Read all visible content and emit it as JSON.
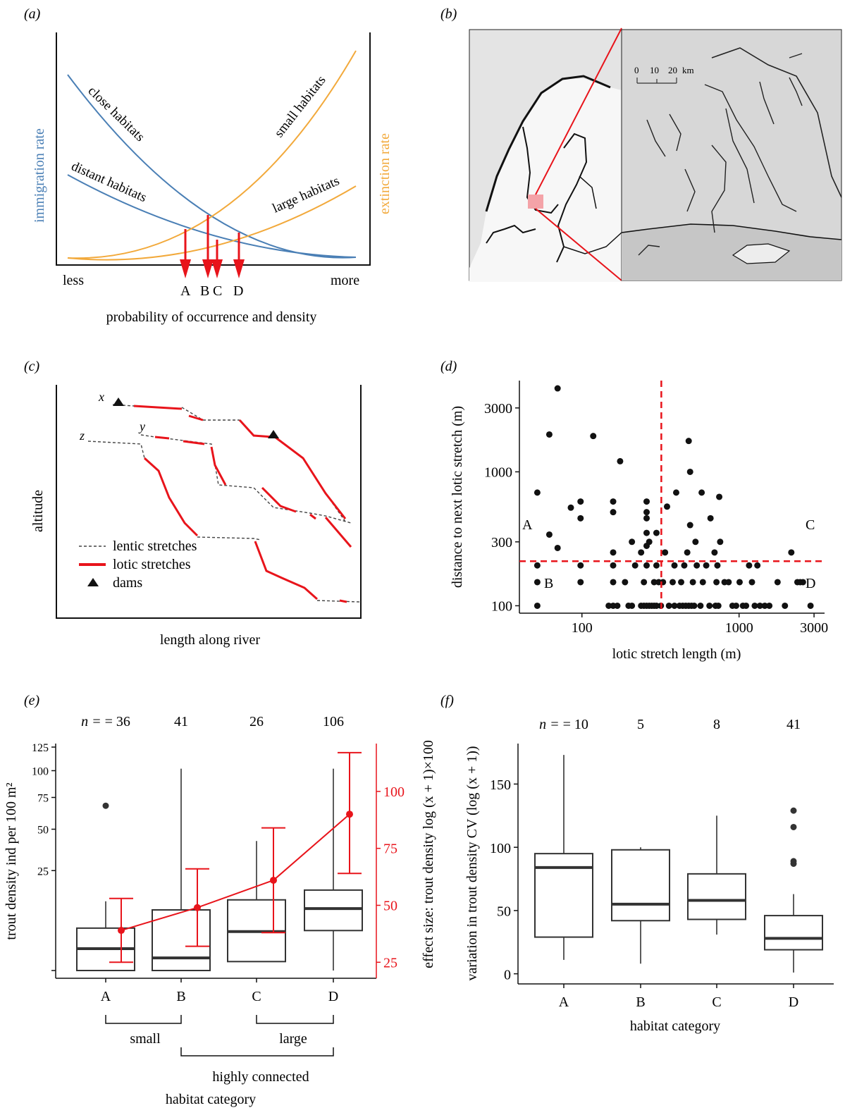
{
  "panels": {
    "a": {
      "tag": "(a)"
    },
    "b": {
      "tag": "(b)"
    },
    "c": {
      "tag": "(c)"
    },
    "d": {
      "tag": "(d)"
    },
    "e": {
      "tag": "(e)"
    },
    "f": {
      "tag": "(f)"
    }
  },
  "colors": {
    "blue": "#4a7fb5",
    "orange": "#f2a93b",
    "red": "#e8141b",
    "black": "#111111",
    "box": "#333333"
  },
  "chart_data": [
    {
      "id": "a",
      "type": "line",
      "ylabel_left": "immigration rate",
      "ylabel_right": "extinction rate",
      "xlabel": "probability of occurrence and density",
      "x_end_labels": [
        "less",
        "more"
      ],
      "curve_labels": [
        "close habitats",
        "distant habitats",
        "small habitats",
        "large habitats"
      ],
      "arrow_labels": [
        "A",
        "B",
        "C",
        "D"
      ]
    },
    {
      "id": "b",
      "type": "map",
      "scale_ticks": [
        "0",
        "10",
        "20"
      ],
      "scale_unit": "km"
    },
    {
      "id": "c",
      "type": "line",
      "ylabel": "altitude",
      "xlabel": "length along river",
      "point_labels": [
        "x",
        "y",
        "z"
      ],
      "legend": [
        "lentic stretches",
        "lotic stretches",
        "dams"
      ]
    },
    {
      "id": "d",
      "type": "scatter",
      "xlabel": "lotic stretch length (m)",
      "ylabel": "distance to next lotic stretch (m)",
      "x_scale": "log",
      "y_scale": "log",
      "xlim": [
        40,
        3500
      ],
      "ylim": [
        88,
        4800
      ],
      "x_ticks": [
        100,
        1000,
        3000
      ],
      "x_ticklabels": [
        "100",
        "1000",
        "3000"
      ],
      "y_ticks": [
        100,
        300,
        1000,
        3000
      ],
      "y_ticklabels": [
        "100",
        "300",
        "1000",
        "3000"
      ],
      "threshold_x": 320,
      "threshold_y": 215,
      "quadrant_labels": [
        "A",
        "B",
        "C",
        "D"
      ],
      "points": [
        [
          52,
          100
        ],
        [
          52,
          150
        ],
        [
          52,
          200
        ],
        [
          52,
          700
        ],
        [
          62,
          340
        ],
        [
          62,
          1900
        ],
        [
          70,
          4200
        ],
        [
          70,
          270
        ],
        [
          85,
          540
        ],
        [
          98,
          150
        ],
        [
          98,
          200
        ],
        [
          98,
          450
        ],
        [
          98,
          600
        ],
        [
          118,
          1850
        ],
        [
          148,
          100
        ],
        [
          158,
          100
        ],
        [
          158,
          150
        ],
        [
          158,
          200
        ],
        [
          158,
          250
        ],
        [
          158,
          500
        ],
        [
          158,
          600
        ],
        [
          168,
          100
        ],
        [
          175,
          1200
        ],
        [
          188,
          150
        ],
        [
          198,
          100
        ],
        [
          208,
          100
        ],
        [
          208,
          300
        ],
        [
          218,
          200
        ],
        [
          238,
          100
        ],
        [
          238,
          250
        ],
        [
          248,
          100
        ],
        [
          248,
          150
        ],
        [
          258,
          100
        ],
        [
          258,
          200
        ],
        [
          258,
          280
        ],
        [
          258,
          350
        ],
        [
          258,
          450
        ],
        [
          258,
          500
        ],
        [
          258,
          600
        ],
        [
          268,
          100
        ],
        [
          268,
          300
        ],
        [
          278,
          100
        ],
        [
          288,
          100
        ],
        [
          288,
          150
        ],
        [
          298,
          100
        ],
        [
          298,
          200
        ],
        [
          298,
          350
        ],
        [
          308,
          150
        ],
        [
          318,
          100
        ],
        [
          328,
          150
        ],
        [
          338,
          250
        ],
        [
          348,
          550
        ],
        [
          358,
          100
        ],
        [
          378,
          150
        ],
        [
          388,
          100
        ],
        [
          388,
          200
        ],
        [
          398,
          700
        ],
        [
          418,
          100
        ],
        [
          428,
          150
        ],
        [
          438,
          100
        ],
        [
          448,
          200
        ],
        [
          458,
          100
        ],
        [
          468,
          250
        ],
        [
          478,
          100
        ],
        [
          478,
          1700
        ],
        [
          488,
          1000
        ],
        [
          488,
          400
        ],
        [
          498,
          100
        ],
        [
          508,
          150
        ],
        [
          518,
          100
        ],
        [
          528,
          300
        ],
        [
          538,
          200
        ],
        [
          568,
          100
        ],
        [
          578,
          700
        ],
        [
          588,
          150
        ],
        [
          618,
          200
        ],
        [
          648,
          100
        ],
        [
          658,
          450
        ],
        [
          698,
          250
        ],
        [
          708,
          100
        ],
        [
          718,
          150
        ],
        [
          728,
          200
        ],
        [
          738,
          100
        ],
        [
          748,
          650
        ],
        [
          758,
          300
        ],
        [
          808,
          150
        ],
        [
          858,
          150
        ],
        [
          908,
          100
        ],
        [
          958,
          100
        ],
        [
          1008,
          150
        ],
        [
          1058,
          100
        ],
        [
          1108,
          100
        ],
        [
          1158,
          200
        ],
        [
          1208,
          150
        ],
        [
          1258,
          100
        ],
        [
          1308,
          200
        ],
        [
          1358,
          100
        ],
        [
          1458,
          100
        ],
        [
          1558,
          100
        ],
        [
          1758,
          150
        ],
        [
          1958,
          100
        ],
        [
          2150,
          250
        ],
        [
          2350,
          150
        ],
        [
          2450,
          150
        ],
        [
          2550,
          150
        ],
        [
          2850,
          100
        ]
      ]
    },
    {
      "id": "e",
      "type": "box",
      "categories": [
        "A",
        "B",
        "C",
        "D"
      ],
      "n_prefix": "n = ",
      "n": [
        "36",
        "41",
        "26",
        "106"
      ],
      "ylabel": "trout density ind per 100 m²",
      "ylabel_right": "effect size: trout density log (x + 1)×100",
      "y_ticks": [
        25,
        50,
        75,
        100,
        125
      ],
      "y_ticklabels": [
        "25",
        "50",
        "75",
        "100",
        "125"
      ],
      "y_scale": "sqrt",
      "ylim": [
        0,
        125
      ],
      "y2_ticks": [
        25,
        50,
        75,
        100
      ],
      "y2_ticklabels": [
        "25",
        "50",
        "75",
        "100"
      ],
      "y2lim": [
        22,
        121
      ],
      "boxes": [
        {
          "q1": 0,
          "median": 1.2,
          "q3": 4.5,
          "whisker_low": 0,
          "whisker_high": 12,
          "outliers": [
            68
          ]
        },
        {
          "q1": 0,
          "median": 0.4,
          "q3": 9.2,
          "whisker_low": 0,
          "whisker_high": 102,
          "outliers": []
        },
        {
          "q1": 0.2,
          "median": 3.8,
          "q3": 12.5,
          "whisker_low": 0.2,
          "whisker_high": 42,
          "outliers": []
        },
        {
          "q1": 4.0,
          "median": 9.6,
          "q3": 16.2,
          "whisker_low": 0,
          "whisker_high": 102,
          "outliers": []
        }
      ],
      "effect": [
        {
          "mean": 39,
          "lo": 25,
          "hi": 53
        },
        {
          "mean": 49,
          "lo": 32,
          "hi": 66
        },
        {
          "mean": 61,
          "lo": 38,
          "hi": 84
        },
        {
          "mean": 90,
          "lo": 64,
          "hi": 117
        }
      ],
      "groups": [
        "small",
        "large",
        "highly connected"
      ],
      "xlabel": "habitat category"
    },
    {
      "id": "f",
      "type": "box",
      "categories": [
        "A",
        "B",
        "C",
        "D"
      ],
      "n_prefix": "n = ",
      "n": [
        "10",
        "5",
        "8",
        "41"
      ],
      "ylabel": "variation in trout density CV (log (x + 1))",
      "xlabel": "habitat category",
      "y_ticks": [
        0,
        50,
        100,
        150
      ],
      "y_ticklabels": [
        "0",
        "50",
        "100",
        "150"
      ],
      "ylim": [
        -8,
        182
      ],
      "boxes": [
        {
          "q1": 29,
          "median": 84,
          "q3": 95,
          "whisker_low": 11,
          "whisker_high": 173,
          "outliers": []
        },
        {
          "q1": 42,
          "median": 55,
          "q3": 98,
          "whisker_low": 8,
          "whisker_high": 100,
          "outliers": []
        },
        {
          "q1": 43,
          "median": 58,
          "q3": 79,
          "whisker_low": 31,
          "whisker_high": 125,
          "outliers": []
        },
        {
          "q1": 19,
          "median": 28,
          "q3": 46,
          "whisker_low": 1,
          "whisker_high": 63,
          "outliers": [
            87,
            89,
            116,
            129
          ]
        }
      ]
    }
  ]
}
